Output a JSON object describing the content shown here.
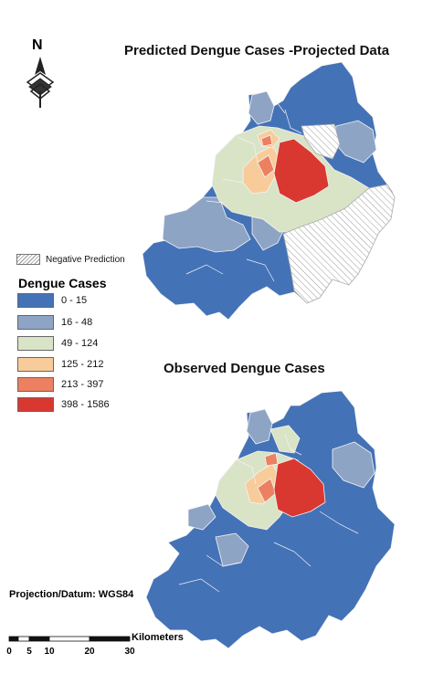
{
  "map_titles": {
    "predicted": "Predicted Dengue Cases -Projected Data",
    "observed": "Observed Dengue Cases"
  },
  "north_arrow": {
    "letter": "N"
  },
  "legend": {
    "negative_label": "Negative Prediction",
    "title": "Dengue Cases",
    "classes": [
      {
        "label": "0 - 15",
        "color": "#4472b7"
      },
      {
        "label": "16 - 48",
        "color": "#8ea4c4"
      },
      {
        "label": "49 - 124",
        "color": "#d9e3c6"
      },
      {
        "label": "125 - 212",
        "color": "#f8cc9a"
      },
      {
        "label": "213 - 397",
        "color": "#ec8060"
      },
      {
        "label": "398 - 1586",
        "color": "#d93830"
      }
    ]
  },
  "projection": "Projection/Datum: WGS84",
  "scale_bar": {
    "unit_label": "Kilometers",
    "ticks": [
      "0",
      "5",
      "10",
      "20",
      "30"
    ]
  }
}
